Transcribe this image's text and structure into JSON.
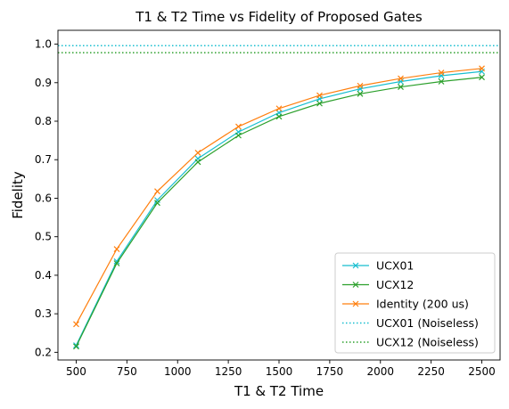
{
  "chart_data": {
    "type": "line",
    "title": "T1 & T2 Time vs Fidelity of Proposed Gates",
    "xlabel": "T1 & T2 Time",
    "ylabel": "Fidelity",
    "x": [
      500,
      700,
      900,
      1100,
      1300,
      1500,
      1700,
      1900,
      2100,
      2300,
      2500
    ],
    "xlim": [
      410,
      2590
    ],
    "ylim": [
      0.18,
      1.036
    ],
    "xticks": [
      500,
      750,
      1000,
      1250,
      1500,
      1750,
      2000,
      2250,
      2500
    ],
    "yticks": [
      0.2,
      0.3,
      0.4,
      0.5,
      0.6,
      0.7,
      0.8,
      0.9,
      1.0
    ],
    "ytick_labels": [
      "0.2",
      "0.3",
      "0.4",
      "0.5",
      "0.6",
      "0.7",
      "0.8",
      "0.9",
      "1.0"
    ],
    "grid": false,
    "legend_position": "lower-right",
    "series": [
      {
        "name": "UCX01",
        "color": "#17becf",
        "style": "solid",
        "marker": "x",
        "values": [
          0.218,
          0.436,
          0.595,
          0.703,
          0.772,
          0.822,
          0.858,
          0.884,
          0.903,
          0.918,
          0.929
        ]
      },
      {
        "name": "UCX12",
        "color": "#2ca02c",
        "style": "solid",
        "marker": "x",
        "values": [
          0.215,
          0.431,
          0.588,
          0.694,
          0.763,
          0.812,
          0.846,
          0.871,
          0.889,
          0.903,
          0.914
        ]
      },
      {
        "name": "Identity (200 us)",
        "color": "#ff7f0e",
        "style": "solid",
        "marker": "x",
        "values": [
          0.273,
          0.468,
          0.618,
          0.718,
          0.786,
          0.833,
          0.867,
          0.892,
          0.911,
          0.926,
          0.937
        ]
      },
      {
        "name": "UCX01 (Noiseless)",
        "color": "#17becf",
        "style": "dotted",
        "hline": 0.996
      },
      {
        "name": "UCX12 (Noiseless)",
        "color": "#2ca02c",
        "style": "dotted",
        "hline": 0.978
      }
    ]
  }
}
